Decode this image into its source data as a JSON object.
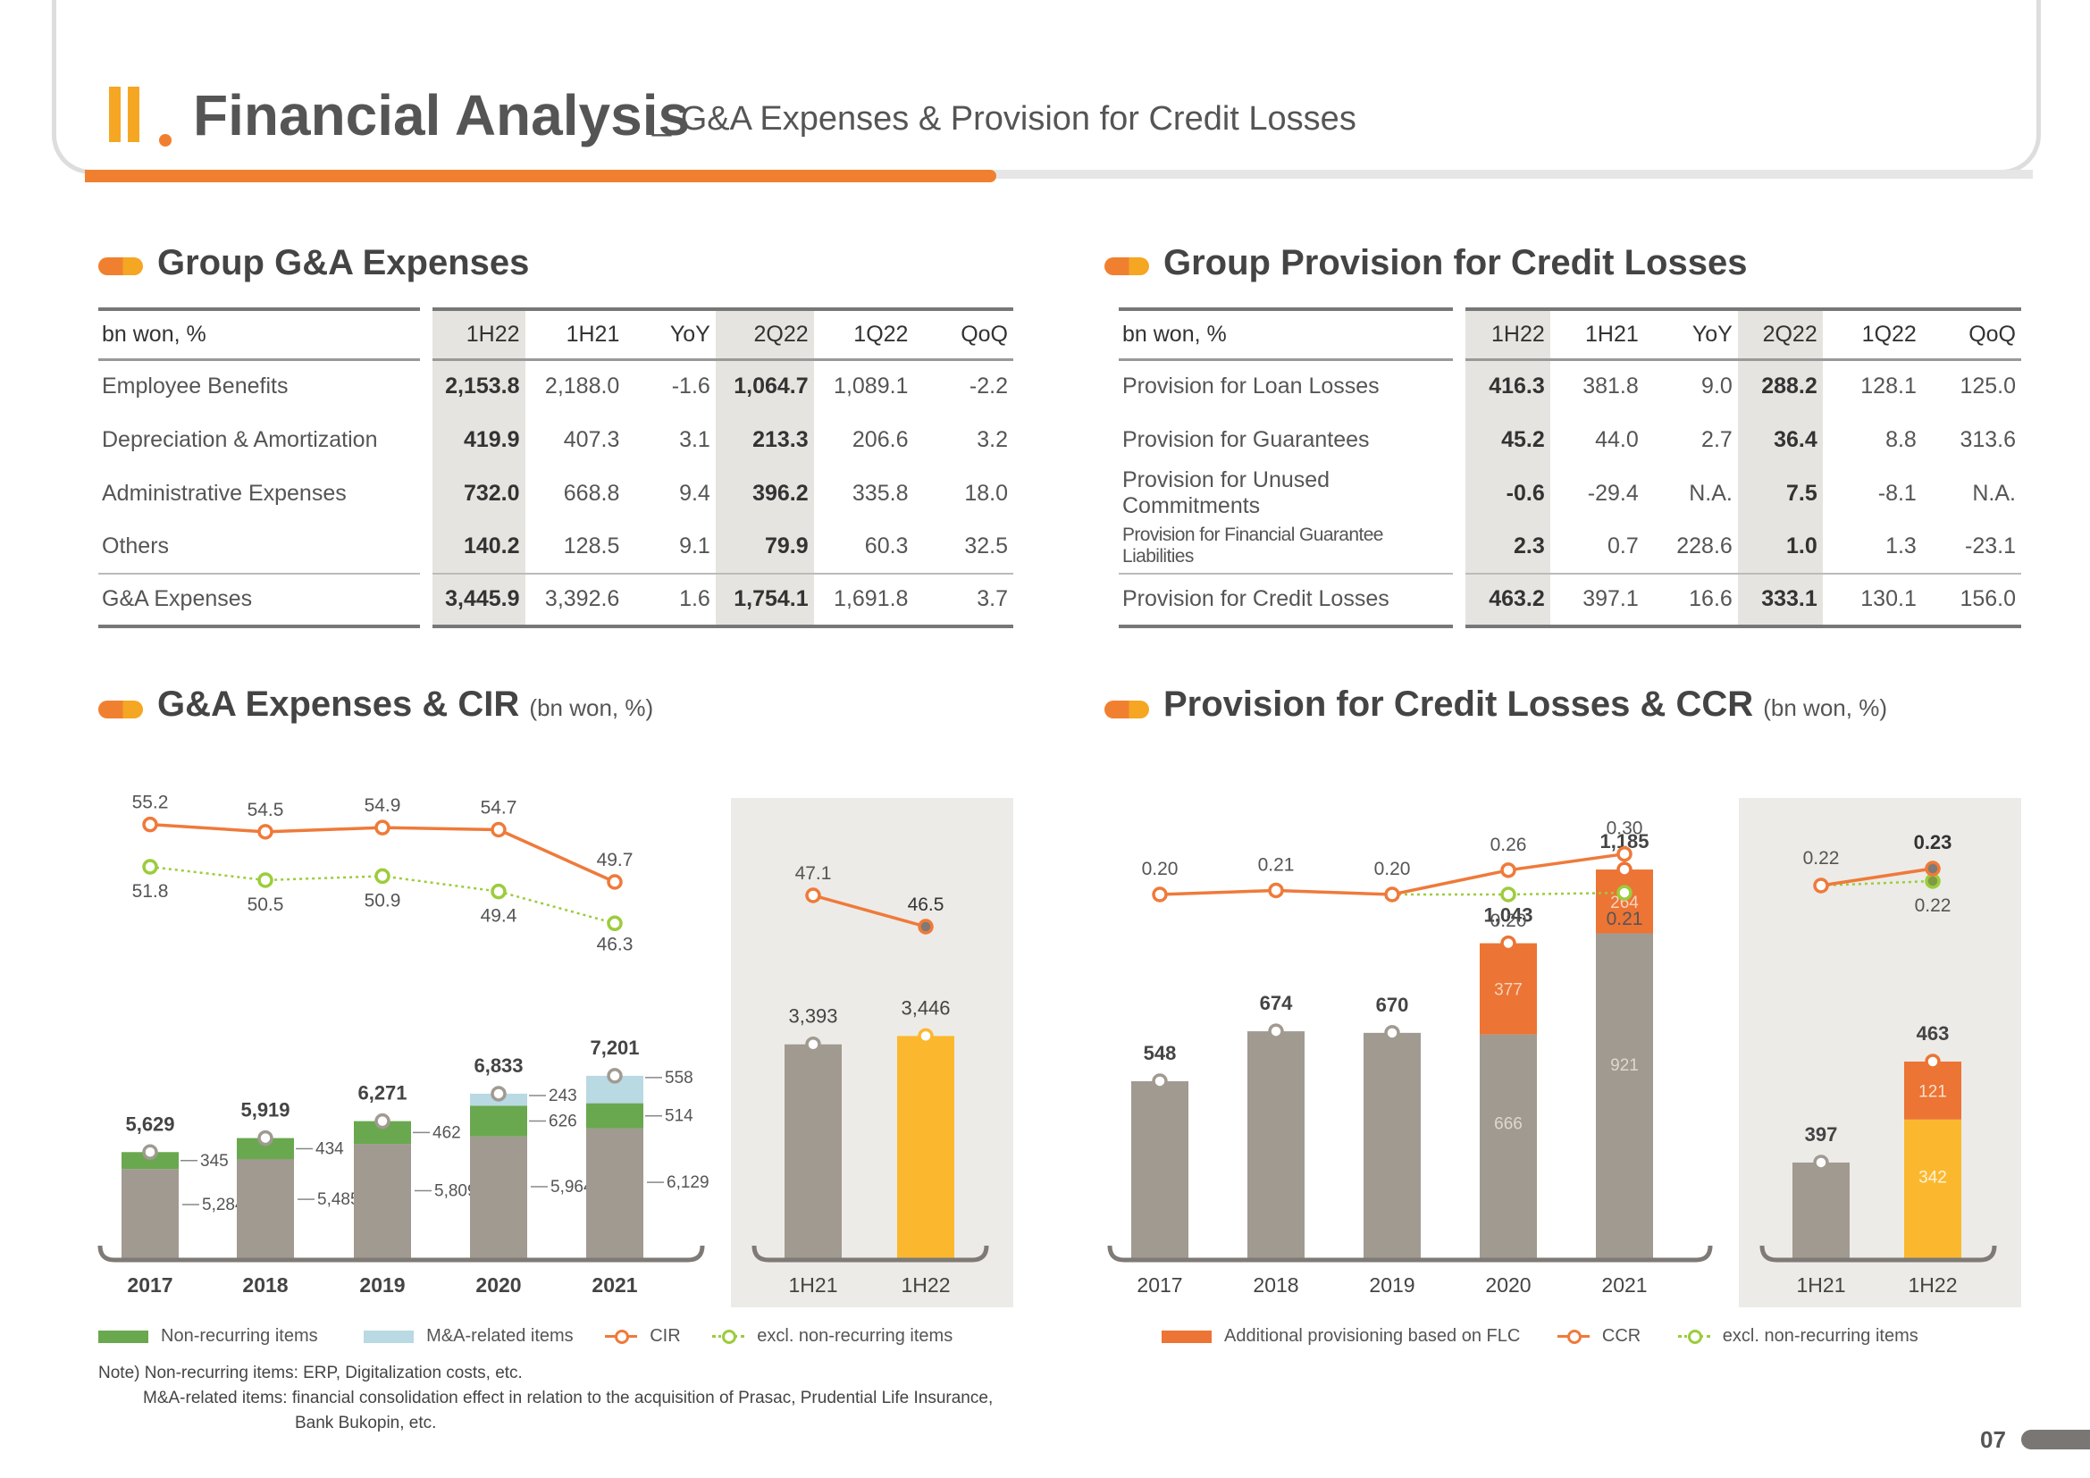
{
  "header": {
    "roman": "II",
    "title": "Financial Analysis",
    "subtitle": "_ G&A Expenses & Provision for Credit Losses"
  },
  "ga_table": {
    "section_title": "Group G&A Expenses",
    "headers": [
      "bn won, %",
      "1H22",
      "1H21",
      "YoY",
      "2Q22",
      "1Q22",
      "QoQ"
    ],
    "rows": [
      [
        "Employee Benefits",
        "2,153.8",
        "2,188.0",
        "-1.6",
        "1,064.7",
        "1,089.1",
        "-2.2"
      ],
      [
        "Depreciation & Amortization",
        "419.9",
        "407.3",
        "3.1",
        "213.3",
        "206.6",
        "3.2"
      ],
      [
        "Administrative Expenses",
        "732.0",
        "668.8",
        "9.4",
        "396.2",
        "335.8",
        "18.0"
      ],
      [
        "Others",
        "140.2",
        "128.5",
        "9.1",
        "79.9",
        "60.3",
        "32.5"
      ]
    ],
    "total": [
      "G&A Expenses",
      "3,445.9",
      "3,392.6",
      "1.6",
      "1,754.1",
      "1,691.8",
      "3.7"
    ]
  },
  "prov_table": {
    "section_title": "Group Provision for Credit Losses",
    "headers": [
      "bn won, %",
      "1H22",
      "1H21",
      "YoY",
      "2Q22",
      "1Q22",
      "QoQ"
    ],
    "rows": [
      [
        "Provision for Loan Losses",
        "416.3",
        "381.8",
        "9.0",
        "288.2",
        "128.1",
        "125.0"
      ],
      [
        "Provision for Guarantees",
        "45.2",
        "44.0",
        "2.7",
        "36.4",
        "8.8",
        "313.6"
      ],
      [
        "Provision for Unused Commitments",
        "-0.6",
        "-29.4",
        "N.A.",
        "7.5",
        "-8.1",
        "N.A."
      ],
      [
        "Provision for Financial Guarantee Liabilities",
        "2.3",
        "0.7",
        "228.6",
        "1.0",
        "1.3",
        "-23.1"
      ]
    ],
    "total": [
      "Provision for Credit Losses",
      "463.2",
      "397.1",
      "16.6",
      "333.1",
      "130.1",
      "156.0"
    ]
  },
  "ga_chart_title": {
    "main": "G&A Expenses & CIR",
    "unit": "(bn won, %)"
  },
  "prov_chart_title": {
    "main": "Provision for Credit Losses & CCR",
    "unit": "(bn won, %)"
  },
  "legend_ga": {
    "nonrecurring": "Non-recurring items",
    "mna": "M&A-related items",
    "cir": "CIR",
    "excl": "excl. non-recurring items"
  },
  "legend_prov": {
    "flc": "Additional provisioning based on FLC",
    "ccr": "CCR",
    "excl": "excl. non-recurring items"
  },
  "notes": {
    "line1": "Note) Non-recurring items: ERP, Digitalization costs, etc.",
    "line2": "M&A-related items: financial consolidation effect in relation to the acquisition of Prasac, Prudential Life Insurance,",
    "line3": "Bank Bukopin, etc."
  },
  "page_number": "07",
  "colors": {
    "grey_bar": "#a19a91",
    "green": "#6aa84f",
    "light_blue": "#b9d9e3",
    "orange_line": "#ef7a3a",
    "lime": "#9ccc3c",
    "yellow": "#fbb82f",
    "flc_orange": "#ec7435",
    "panel_bg": "#ecebe7"
  },
  "chart_data": [
    {
      "type": "bar",
      "title": "G&A Expenses & CIR",
      "categories": [
        "2017",
        "2018",
        "2019",
        "2020",
        "2021"
      ],
      "stacked": true,
      "series": [
        {
          "name": "",
          "values": [
            5284,
            5485,
            5809,
            5964,
            6129
          ]
        },
        {
          "name": "Non-recurring items",
          "values": [
            345,
            434,
            462,
            626,
            514
          ]
        },
        {
          "name": "M&A-related items",
          "values": [
            0,
            0,
            0,
            243,
            558
          ]
        }
      ],
      "totals": [
        5629,
        5919,
        6271,
        6833,
        7201
      ],
      "lines": [
        {
          "name": "CIR",
          "values": [
            55.2,
            54.5,
            54.9,
            54.7,
            49.7
          ]
        },
        {
          "name": "excl. non-recurring items",
          "values": [
            51.8,
            50.5,
            50.9,
            49.4,
            46.3
          ]
        }
      ]
    },
    {
      "type": "bar",
      "categories": [
        "1H21",
        "1H22"
      ],
      "values": [
        3393,
        3446
      ],
      "lines": [
        {
          "name": "CIR",
          "values": [
            47.1,
            46.5
          ]
        }
      ]
    },
    {
      "type": "bar",
      "title": "Provision for Credit Losses & CCR",
      "categories": [
        "2017",
        "2018",
        "2019",
        "2020",
        "2021"
      ],
      "stacked": true,
      "series": [
        {
          "name": "",
          "values": [
            548,
            674,
            670,
            666,
            921
          ]
        },
        {
          "name": "Additional provisioning based on FLC",
          "values": [
            0,
            0,
            0,
            377,
            264
          ]
        }
      ],
      "totals": [
        548,
        674,
        670,
        1043,
        1185
      ],
      "lines": [
        {
          "name": "CCR",
          "values": [
            0.2,
            0.21,
            0.2,
            0.26,
            0.3
          ]
        },
        {
          "name": "excl. non-recurring items",
          "values": [
            null,
            null,
            0.2,
            0.2,
            0.21
          ]
        }
      ]
    },
    {
      "type": "bar",
      "categories": [
        "1H21",
        "1H22"
      ],
      "stacked": true,
      "series": [
        {
          "name": "",
          "values": [
            397,
            342
          ]
        },
        {
          "name": "",
          "values": [
            0,
            121
          ]
        }
      ],
      "totals": [
        397,
        463
      ],
      "lines": [
        {
          "name": "CCR",
          "values": [
            0.22,
            0.23
          ]
        },
        {
          "name": "excl. non-recurring items",
          "values": [
            0.22,
            0.22
          ]
        }
      ]
    }
  ]
}
